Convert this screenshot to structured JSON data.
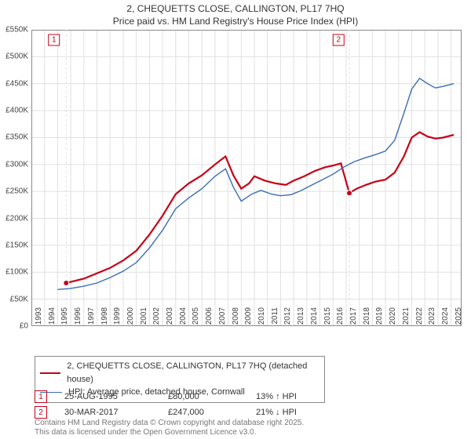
{
  "title_line1": "2, CHEQUETTS CLOSE, CALLINGTON, PL17 7HQ",
  "title_line2": "Price paid vs. HM Land Registry's House Price Index (HPI)",
  "chart": {
    "type": "line",
    "background_color": "#ffffff",
    "grid_color": "#e0e0e0",
    "axis_color": "#888888",
    "x": {
      "min": 1993,
      "max": 2025.8,
      "ticks": [
        1993,
        1994,
        1995,
        1996,
        1997,
        1998,
        1999,
        2000,
        2001,
        2002,
        2003,
        2004,
        2005,
        2006,
        2007,
        2008,
        2009,
        2010,
        2011,
        2012,
        2013,
        2014,
        2015,
        2016,
        2017,
        2018,
        2019,
        2020,
        2021,
        2022,
        2023,
        2024,
        2025
      ]
    },
    "y": {
      "min": 0,
      "max": 550,
      "ticks": [
        0,
        50,
        100,
        150,
        200,
        250,
        300,
        350,
        400,
        450,
        500,
        550
      ],
      "prefix": "£",
      "suffix": "K"
    },
    "series": [
      {
        "name": "property",
        "label": "2, CHEQUETTS CLOSE, CALLINGTON, PL17 7HQ (detached house)",
        "color": "#c60018",
        "line_width": 2.2,
        "points": [
          [
            1995.65,
            80
          ],
          [
            1996,
            82
          ],
          [
            1997,
            88
          ],
          [
            1998,
            98
          ],
          [
            1999,
            108
          ],
          [
            2000,
            122
          ],
          [
            2001,
            140
          ],
          [
            2002,
            170
          ],
          [
            2003,
            205
          ],
          [
            2004,
            245
          ],
          [
            2005,
            265
          ],
          [
            2006,
            280
          ],
          [
            2007,
            300
          ],
          [
            2007.8,
            315
          ],
          [
            2008.4,
            280
          ],
          [
            2009,
            255
          ],
          [
            2009.6,
            265
          ],
          [
            2010,
            278
          ],
          [
            2010.8,
            270
          ],
          [
            2011.6,
            265
          ],
          [
            2012.4,
            262
          ],
          [
            2013,
            270
          ],
          [
            2013.8,
            278
          ],
          [
            2014.6,
            288
          ],
          [
            2015.4,
            295
          ],
          [
            2016,
            298
          ],
          [
            2016.6,
            302
          ],
          [
            2017.24,
            247
          ],
          [
            2017.8,
            255
          ],
          [
            2018.5,
            262
          ],
          [
            2019.2,
            268
          ],
          [
            2020,
            272
          ],
          [
            2020.7,
            285
          ],
          [
            2021.4,
            315
          ],
          [
            2022,
            350
          ],
          [
            2022.6,
            360
          ],
          [
            2023.2,
            352
          ],
          [
            2023.8,
            348
          ],
          [
            2024.4,
            350
          ],
          [
            2025.2,
            355
          ]
        ]
      },
      {
        "name": "hpi",
        "label": "HPI: Average price, detached house, Cornwall",
        "color": "#3b6db3",
        "line_width": 1.4,
        "points": [
          [
            1995,
            68
          ],
          [
            1996,
            70
          ],
          [
            1997,
            74
          ],
          [
            1998,
            80
          ],
          [
            1999,
            90
          ],
          [
            2000,
            102
          ],
          [
            2001,
            118
          ],
          [
            2002,
            145
          ],
          [
            2003,
            178
          ],
          [
            2004,
            218
          ],
          [
            2005,
            238
          ],
          [
            2006,
            255
          ],
          [
            2007,
            278
          ],
          [
            2007.8,
            292
          ],
          [
            2008.4,
            258
          ],
          [
            2009,
            232
          ],
          [
            2009.8,
            245
          ],
          [
            2010.5,
            252
          ],
          [
            2011.3,
            245
          ],
          [
            2012,
            242
          ],
          [
            2012.8,
            244
          ],
          [
            2013.6,
            252
          ],
          [
            2014.4,
            262
          ],
          [
            2015.2,
            272
          ],
          [
            2016,
            282
          ],
          [
            2016.8,
            295
          ],
          [
            2017.6,
            305
          ],
          [
            2018.4,
            312
          ],
          [
            2019.2,
            318
          ],
          [
            2020,
            325
          ],
          [
            2020.7,
            345
          ],
          [
            2021.4,
            395
          ],
          [
            2022,
            440
          ],
          [
            2022.6,
            460
          ],
          [
            2023.2,
            450
          ],
          [
            2023.8,
            442
          ],
          [
            2024.4,
            445
          ],
          [
            2025.2,
            450
          ]
        ]
      }
    ],
    "markers": [
      {
        "n": 1,
        "x": 1995.65,
        "y": 80,
        "color": "#c60018",
        "box_x": 1994.3,
        "box_y": 490
      },
      {
        "n": 2,
        "x": 2017.24,
        "y": 247,
        "color": "#c60018",
        "box_x": 2016.0,
        "box_y": 490
      }
    ]
  },
  "legend": {
    "items": [
      {
        "color": "#c60018",
        "width": 2.2,
        "label": "2, CHEQUETTS CLOSE, CALLINGTON, PL17 7HQ (detached house)"
      },
      {
        "color": "#3b6db3",
        "width": 1.4,
        "label": "HPI: Average price, detached house, Cornwall"
      }
    ]
  },
  "marker_table": [
    {
      "n": 1,
      "color": "#c60018",
      "date": "25-AUG-1995",
      "price": "£80,000",
      "delta": "13% ↑ HPI"
    },
    {
      "n": 2,
      "color": "#c60018",
      "date": "30-MAR-2017",
      "price": "£247,000",
      "delta": "21% ↓ HPI"
    }
  ],
  "attribution_line1": "Contains HM Land Registry data © Crown copyright and database right 2025.",
  "attribution_line2": "This data is licensed under the Open Government Licence v3.0."
}
